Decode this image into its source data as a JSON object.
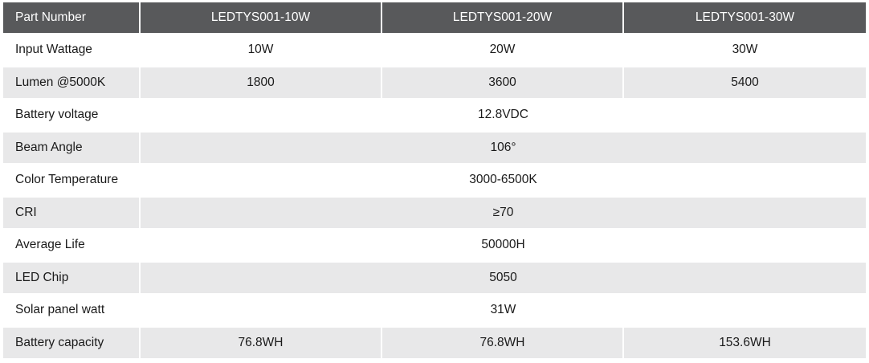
{
  "header": {
    "label": "Part Number",
    "models": [
      "LEDTYS001-10W",
      "LEDTYS001-20W",
      "LEDTYS001-30W"
    ]
  },
  "rows": [
    {
      "label": "Input Wattage",
      "values": [
        "10W",
        "20W",
        "30W"
      ]
    },
    {
      "label": "Lumen @5000K",
      "values": [
        "1800",
        "3600",
        "5400"
      ]
    },
    {
      "label": "Battery voltage",
      "values": [
        "12.8VDC"
      ]
    },
    {
      "label": "Beam Angle",
      "values": [
        "106°"
      ]
    },
    {
      "label": "Color Temperature",
      "values": [
        "3000-6500K"
      ]
    },
    {
      "label": "CRI",
      "values": [
        "≥70"
      ]
    },
    {
      "label": "Average Life",
      "values": [
        "50000H"
      ]
    },
    {
      "label": "LED Chip",
      "values": [
        "5050"
      ]
    },
    {
      "label": "Solar panel watt",
      "values": [
        "31W"
      ]
    },
    {
      "label": "Battery capacity",
      "values": [
        "76.8WH",
        "76.8WH",
        "153.6WH"
      ]
    }
  ]
}
